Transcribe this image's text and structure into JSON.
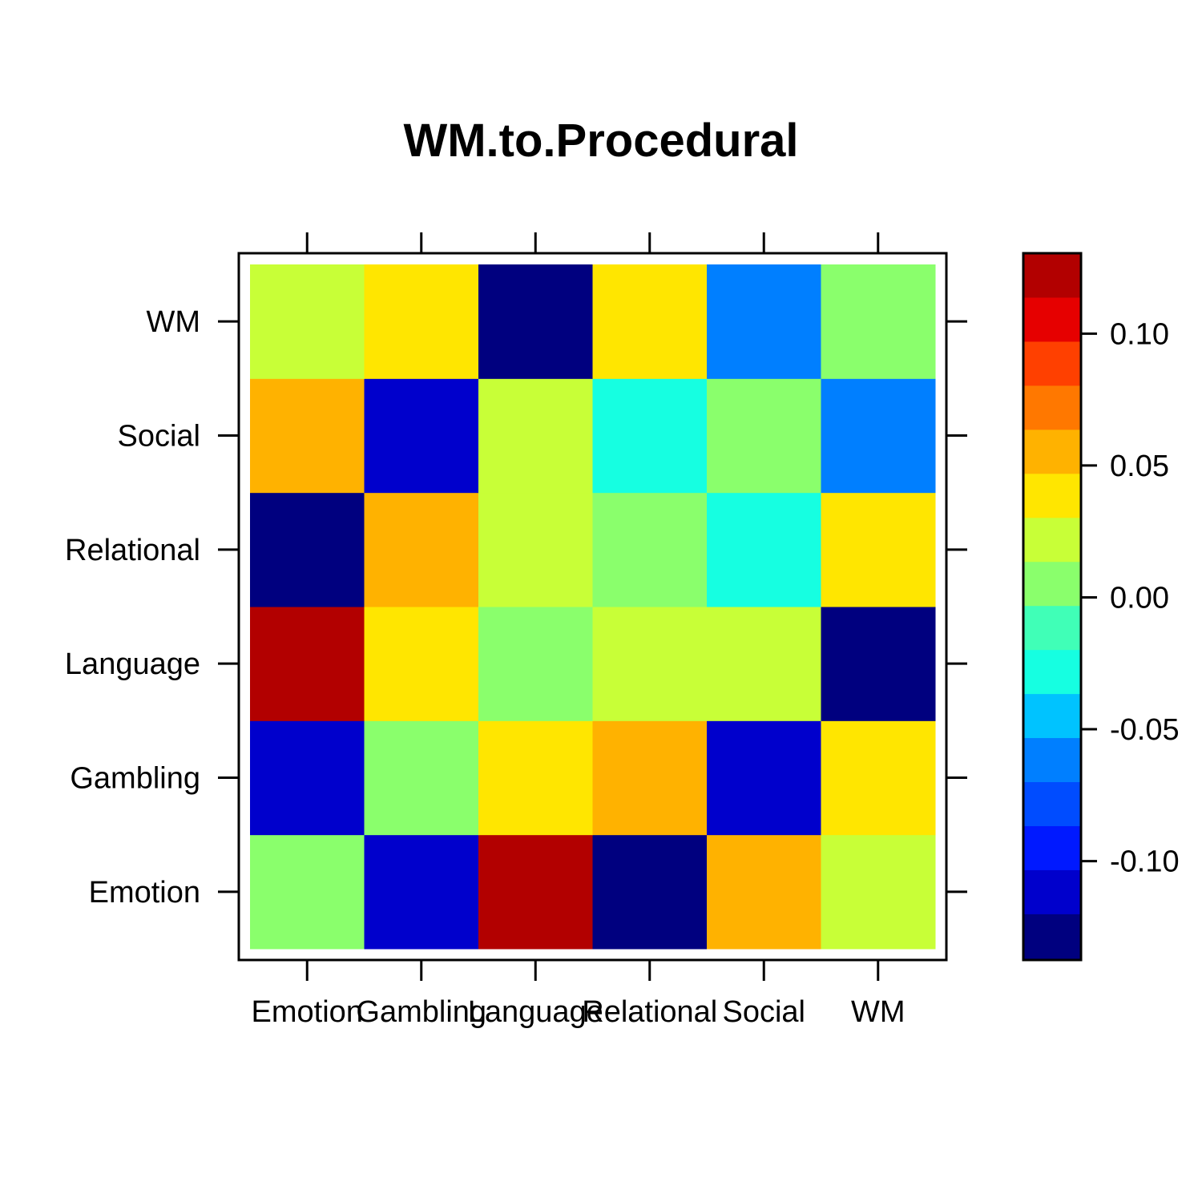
{
  "chart_data": {
    "type": "heatmap",
    "title": "WM.to.Procedural",
    "x_categories": [
      "Emotion",
      "Gambling",
      "Language",
      "Relational",
      "Social",
      "WM"
    ],
    "y_categories": [
      "Emotion",
      "Gambling",
      "Language",
      "Relational",
      "Social",
      "WM"
    ],
    "values": [
      [
        0.005,
        -0.105,
        0.125,
        -0.13,
        0.055,
        0.025
      ],
      [
        -0.105,
        0.005,
        0.04,
        0.055,
        -0.105,
        0.04
      ],
      [
        0.125,
        0.04,
        0.005,
        0.025,
        0.025,
        -0.12
      ],
      [
        -0.13,
        0.055,
        0.025,
        0.005,
        -0.03,
        0.04
      ],
      [
        0.055,
        -0.105,
        0.025,
        -0.03,
        0.005,
        -0.055
      ],
      [
        0.025,
        0.04,
        -0.12,
        0.04,
        -0.055,
        0.005
      ]
    ],
    "values_note_axes": "row index = y category (bottom to top), column index = x category (left to right)",
    "colorbar": {
      "breaks": [
        -0.1375,
        -0.12,
        -0.1033,
        -0.0866,
        -0.0699,
        -0.0532,
        -0.0365,
        -0.0198,
        -0.0031,
        0.0136,
        0.0303,
        0.047,
        0.0637,
        0.0804,
        0.0971,
        0.1138,
        0.1305
      ],
      "colors": [
        "#00007F",
        "#0000CC",
        "#0019FF",
        "#004CFF",
        "#007FFF",
        "#00C3FF",
        "#16FFE1",
        "#40FFB7",
        "#8AFF6C",
        "#C8FF37",
        "#FFE600",
        "#FFB200",
        "#FF7800",
        "#FF4000",
        "#E60000",
        "#B20000"
      ],
      "ticks": [
        0.1,
        0.05,
        0.0,
        -0.05,
        -0.1
      ],
      "tick_labels": [
        "0.10",
        "0.05",
        "0.00",
        "-0.05",
        "-0.10"
      ]
    }
  }
}
